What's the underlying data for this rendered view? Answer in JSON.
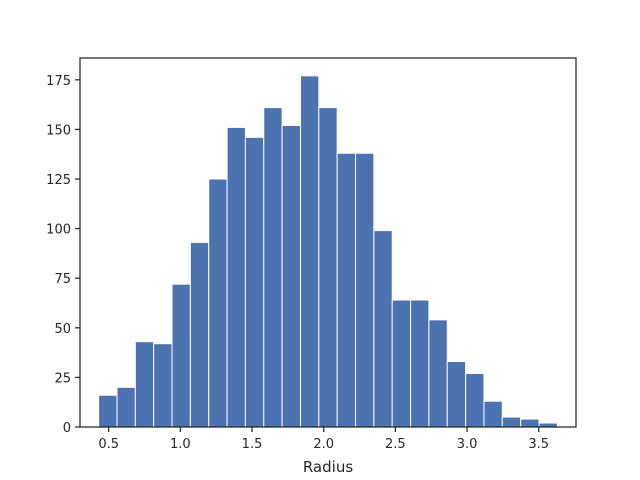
{
  "chart_data": {
    "type": "bar",
    "title": "",
    "xlabel": "Radius",
    "ylabel": "",
    "xlim": [
      0.3,
      3.76
    ],
    "ylim": [
      0,
      186
    ],
    "xticks": [
      0.5,
      1.0,
      1.5,
      2.0,
      2.5,
      3.0,
      3.5
    ],
    "xtick_labels": [
      "0.5",
      "1.0",
      "1.5",
      "2.0",
      "2.5",
      "3.0",
      "3.5"
    ],
    "yticks": [
      0,
      25,
      50,
      75,
      100,
      125,
      150,
      175
    ],
    "ytick_labels": [
      "0",
      "25",
      "50",
      "75",
      "100",
      "125",
      "150",
      "175"
    ],
    "bin_edges": [
      0.43,
      0.558,
      0.686,
      0.814,
      0.942,
      1.07,
      1.198,
      1.326,
      1.454,
      1.582,
      1.71,
      1.838,
      1.966,
      2.094,
      2.222,
      2.35,
      2.478,
      2.606,
      2.734,
      2.862,
      2.99,
      3.118,
      3.246,
      3.374,
      3.502,
      3.63
    ],
    "values": [
      16,
      20,
      43,
      42,
      72,
      93,
      125,
      151,
      146,
      161,
      152,
      177,
      161,
      138,
      138,
      99,
      64,
      64,
      54,
      33,
      27,
      13,
      5,
      4,
      2
    ],
    "grid": false,
    "bar_color": "#4c72b0",
    "edge_color": "#ffffff"
  }
}
